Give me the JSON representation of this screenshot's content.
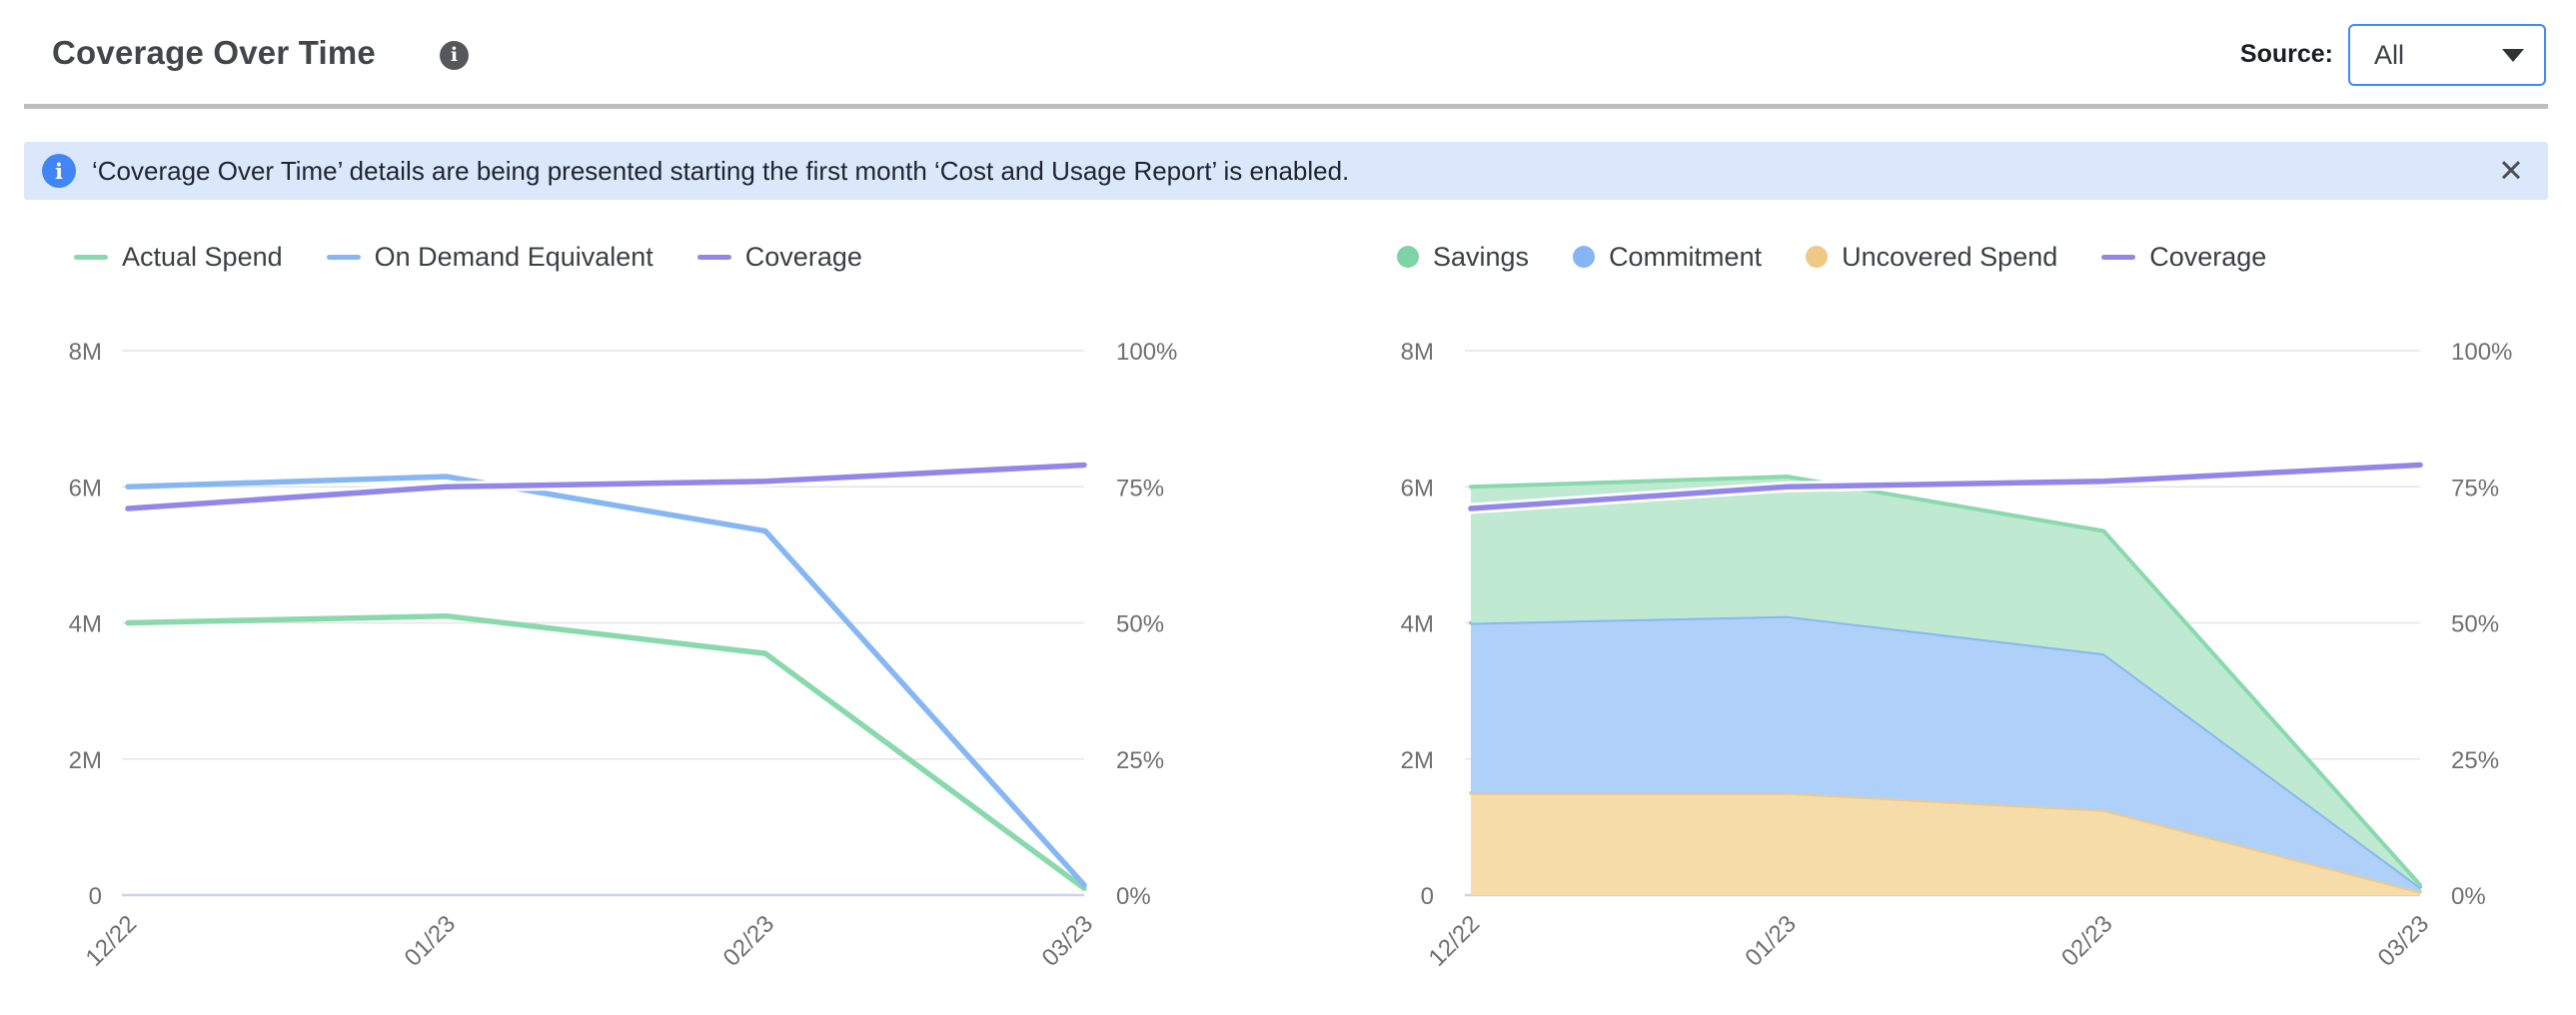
{
  "header": {
    "title": "Coverage Over Time",
    "info_icon": "i",
    "source": {
      "label": "Source:",
      "value": "All"
    }
  },
  "banner": {
    "icon_glyph": "i",
    "text": "‘Coverage Over Time’ details are being presented starting the first month ‘Cost and Usage Report’ is enabled.",
    "close_glyph": "✕"
  },
  "colors": {
    "accent_blue": "#3e8bf7",
    "banner_bg": "#dbe8fb",
    "grid_line": "#e4e4e8",
    "zero_axis": "#c9d3eb",
    "tick_text": "#6f6f6f",
    "green_line": "#89d9ac",
    "green_fill": "#bfe9d1",
    "blue_line": "#87b7f3",
    "blue_fill": "#afd0f8",
    "orange_line": "#efc98b",
    "orange_fill": "#f6dca9",
    "purple_line": "#9386e9"
  },
  "legends": {
    "left": [
      {
        "label": "Actual Spend",
        "swatch": "line",
        "color": "#89d9ac"
      },
      {
        "label": "On Demand Equivalent",
        "swatch": "line",
        "color": "#87b7f3"
      },
      {
        "label": "Coverage",
        "swatch": "line",
        "color": "#9386e9"
      }
    ],
    "right": [
      {
        "label": "Savings",
        "swatch": "circle",
        "color": "#7ed3a6"
      },
      {
        "label": "Commitment",
        "swatch": "circle",
        "color": "#85b5f2"
      },
      {
        "label": "Uncovered Spend",
        "swatch": "circle",
        "color": "#f0c885"
      },
      {
        "label": "Coverage",
        "swatch": "line",
        "color": "#9386e9"
      }
    ]
  },
  "chart_data": [
    {
      "type": "line",
      "title": "Coverage Over Time — spend lines vs coverage",
      "categories": [
        "12/22",
        "01/23",
        "02/23",
        "03/23"
      ],
      "y_left": {
        "ticks": [
          "0",
          "2M",
          "4M",
          "6M",
          "8M"
        ],
        "min": 0,
        "max": 8,
        "unit": "M $"
      },
      "y_right": {
        "ticks": [
          "0%",
          "25%",
          "50%",
          "75%",
          "100%"
        ],
        "min": 0,
        "max": 100,
        "unit": "%"
      },
      "grid": true,
      "legend_position": "top-left",
      "series": [
        {
          "name": "Actual Spend",
          "render": "line",
          "axis": "left",
          "color": "#89d9ac",
          "values": [
            4.0,
            4.1,
            3.55,
            0.1
          ]
        },
        {
          "name": "On Demand Equivalent",
          "render": "line",
          "axis": "left",
          "color": "#87b7f3",
          "values": [
            6.0,
            6.15,
            5.35,
            0.15
          ]
        },
        {
          "name": "Coverage",
          "render": "line",
          "axis": "right",
          "color": "#9386e9",
          "halo": true,
          "values": [
            71,
            75,
            76,
            79
          ]
        }
      ]
    },
    {
      "type": "area",
      "stacked": true,
      "title": "Coverage Over Time — stacked spend breakdown vs coverage",
      "categories": [
        "12/22",
        "01/23",
        "02/23",
        "03/23"
      ],
      "y_left": {
        "ticks": [
          "0",
          "2M",
          "4M",
          "6M",
          "8M"
        ],
        "min": 0,
        "max": 8,
        "unit": "M $"
      },
      "y_right": {
        "ticks": [
          "0%",
          "25%",
          "50%",
          "75%",
          "100%"
        ],
        "min": 0,
        "max": 100,
        "unit": "%"
      },
      "grid": true,
      "legend_position": "top-left",
      "series": [
        {
          "name": "Uncovered Spend",
          "render": "area",
          "axis": "left",
          "color": "#f6dca9",
          "edge": "#efc98b",
          "values": [
            1.5,
            1.5,
            1.25,
            0.05
          ]
        },
        {
          "name": "Commitment",
          "render": "area",
          "axis": "left",
          "color": "#afd0f8",
          "edge": "#87b7f3",
          "values": [
            2.5,
            2.6,
            2.3,
            0.07
          ]
        },
        {
          "name": "Savings",
          "render": "area",
          "axis": "left",
          "color": "#bfe9d1",
          "edge": "#89d9ac",
          "values": [
            2.0,
            2.05,
            1.8,
            0.03
          ]
        },
        {
          "name": "Coverage",
          "render": "line",
          "axis": "right",
          "color": "#9386e9",
          "halo": true,
          "values": [
            71,
            75,
            76,
            79
          ]
        }
      ]
    }
  ]
}
